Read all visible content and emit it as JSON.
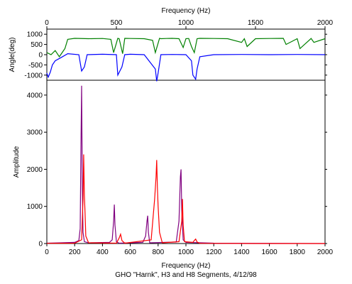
{
  "chart_data": [
    {
      "type": "line",
      "ylabel": "Angle(deg)",
      "xlabel_top": "Frequency (Hz)",
      "xlim": [
        0,
        2000
      ],
      "ylim": [
        -1250,
        1250
      ],
      "x_ticks": [
        0,
        500,
        1000,
        1500,
        2000
      ],
      "y_ticks": [
        1000,
        500,
        0,
        -500,
        -1000
      ],
      "grid": false,
      "series": [
        {
          "color": "#008000",
          "x": [
            0,
            30,
            60,
            90,
            130,
            150,
            200,
            300,
            400,
            460,
            480,
            510,
            520,
            545,
            560,
            600,
            700,
            760,
            780,
            810,
            820,
            860,
            900,
            950,
            980,
            1000,
            1020,
            1040,
            1060,
            1080,
            1100,
            1200,
            1300,
            1400,
            1420,
            1440,
            1500,
            1600,
            1700,
            1720,
            1800,
            1820,
            1900,
            1920,
            2000
          ],
          "values": [
            100,
            0,
            200,
            -100,
            300,
            750,
            800,
            780,
            790,
            750,
            100,
            800,
            780,
            50,
            800,
            790,
            780,
            700,
            100,
            800,
            780,
            790,
            800,
            780,
            350,
            780,
            790,
            400,
            100,
            780,
            800,
            790,
            780,
            600,
            780,
            400,
            780,
            790,
            800,
            500,
            780,
            300,
            790,
            600,
            780
          ]
        },
        {
          "color": "#0000ff",
          "x": [
            0,
            10,
            25,
            40,
            60,
            100,
            150,
            230,
            250,
            270,
            290,
            400,
            500,
            510,
            525,
            540,
            560,
            600,
            700,
            780,
            790,
            800,
            820,
            900,
            1000,
            1040,
            1050,
            1070,
            1080,
            1100,
            1200,
            1400,
            1600,
            1800,
            2000
          ],
          "values": [
            -900,
            -1100,
            -850,
            -500,
            -300,
            -150,
            50,
            0,
            -800,
            -600,
            0,
            20,
            0,
            -1000,
            -800,
            -600,
            0,
            20,
            0,
            -700,
            -1300,
            -900,
            0,
            10,
            0,
            -300,
            -1000,
            -1200,
            -700,
            -100,
            0,
            10,
            0,
            10,
            0
          ]
        }
      ]
    },
    {
      "type": "line",
      "ylabel": "Amplitude",
      "xlabel": "Frequency (Hz)",
      "title": "GHO \"Harnk\", H3 and H8 Segments, 4/12/98",
      "xlim": [
        0,
        2000
      ],
      "ylim": [
        0,
        4400
      ],
      "x_ticks": [
        0,
        200,
        400,
        600,
        800,
        1000,
        1200,
        1400,
        1600,
        1800,
        2000
      ],
      "y_ticks": [
        0,
        1000,
        2000,
        3000,
        4000
      ],
      "grid": false,
      "series": [
        {
          "color": "#800080",
          "x": [
            0,
            100,
            200,
            230,
            240,
            245,
            250,
            255,
            260,
            270,
            300,
            450,
            470,
            480,
            485,
            490,
            500,
            520,
            690,
            710,
            720,
            725,
            730,
            740,
            930,
            950,
            960,
            965,
            970,
            980,
            1000,
            1200,
            1500,
            2000
          ],
          "values": [
            10,
            20,
            30,
            80,
            400,
            2500,
            4250,
            1500,
            300,
            50,
            20,
            30,
            100,
            600,
            1050,
            500,
            50,
            10,
            30,
            200,
            600,
            750,
            300,
            20,
            40,
            600,
            1800,
            2000,
            900,
            100,
            30,
            10,
            5,
            0
          ]
        },
        {
          "color": "#ff0000",
          "x": [
            0,
            200,
            250,
            260,
            265,
            270,
            275,
            280,
            300,
            500,
            520,
            530,
            540,
            560,
            750,
            775,
            785,
            790,
            795,
            800,
            810,
            830,
            950,
            970,
            975,
            980,
            990,
            1050,
            1060,
            1070,
            1080,
            1100,
            1500,
            2000
          ],
          "values": [
            5,
            10,
            100,
            1200,
            2400,
            1300,
            800,
            200,
            20,
            10,
            150,
            250,
            80,
            10,
            100,
            1200,
            1800,
            2250,
            1500,
            1000,
            300,
            20,
            50,
            600,
            1200,
            500,
            50,
            30,
            80,
            120,
            40,
            5,
            0,
            0
          ]
        }
      ]
    }
  ]
}
